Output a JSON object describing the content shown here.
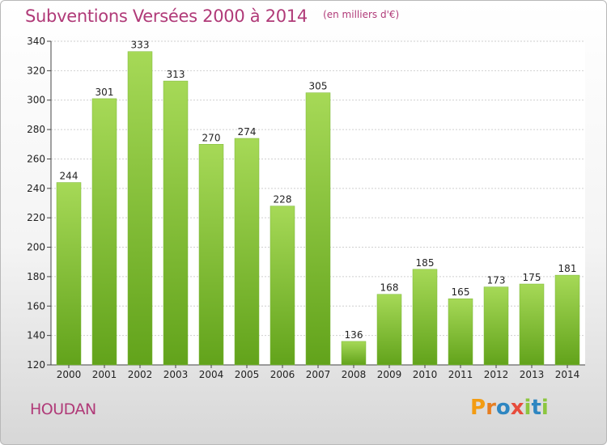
{
  "chart_data": {
    "type": "bar",
    "title": "Subventions Versées 2000 à 2014",
    "unit_note": "(en milliers d'€)",
    "categories": [
      "2000",
      "2001",
      "2002",
      "2003",
      "2004",
      "2005",
      "2006",
      "2007",
      "2008",
      "2009",
      "2010",
      "2011",
      "2012",
      "2013",
      "2014"
    ],
    "values": [
      244,
      301,
      333,
      313,
      270,
      274,
      228,
      305,
      136,
      168,
      185,
      165,
      173,
      175,
      181
    ],
    "ylim": [
      120,
      340
    ],
    "yticks": [
      120,
      140,
      160,
      180,
      200,
      220,
      240,
      260,
      280,
      300,
      320,
      340
    ],
    "grid": true,
    "bar_color": "#8cc63f"
  },
  "footer": {
    "commune": "HOUDAN",
    "logo": "Proxiti"
  },
  "colors": {
    "title": "#b03a78",
    "logo_letters": [
      "#f39c12",
      "#e67e22",
      "#2e86c1",
      "#e74c3c",
      "#8cc63f",
      "#2e86c1",
      "#8cc63f"
    ]
  }
}
